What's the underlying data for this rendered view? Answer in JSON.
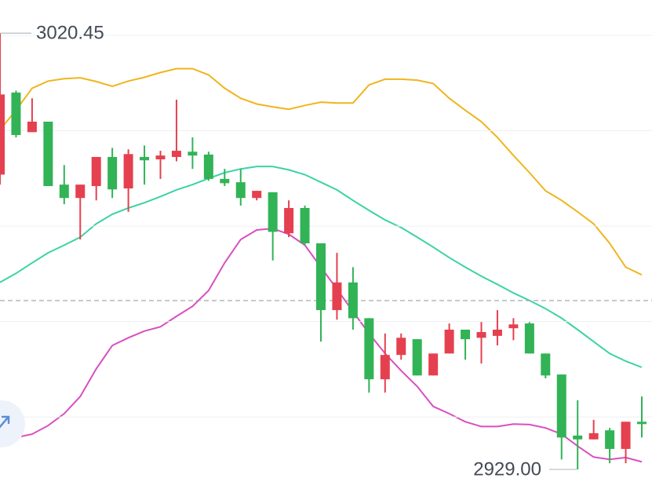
{
  "chart_data": {
    "type": "candlestick",
    "ylim": [
      2924.9,
      3027.4
    ],
    "gridlines": [
      3020,
      3000,
      2980,
      2960,
      2940
    ],
    "price_line": 2964.4,
    "up_color": "#e5404f",
    "down_color": "#31b356",
    "open": [
      2990.8,
      3008.0,
      2999.7,
      3001.9,
      2988.7,
      2985.9,
      2988.4,
      2994.5,
      2987.9,
      2994.5,
      2994.0,
      2994.5,
      2995.6,
      2995.0,
      2989.9,
      2989.2,
      2985.9,
      2987.1,
      2978.5,
      2983.8,
      2976.4,
      2962.4,
      2968.2,
      2960.7,
      2947.9,
      2953.0,
      2956.3,
      2948.7,
      2953.3,
      2958.3,
      2956.6,
      2957.0,
      2958.6,
      2959.6,
      2953.3,
      2948.9,
      2936.1,
      2935.3,
      2937.2,
      2933.3,
      2939.0
    ],
    "high": [
      3020.45,
      3008.4,
      3006.8,
      3001.9,
      2992.8,
      2988.7,
      2994.5,
      2996.4,
      2996.1,
      2996.9,
      2995.8,
      3006.5,
      2998.6,
      2995.6,
      2992.0,
      2992.0,
      2987.4,
      2987.1,
      2985.4,
      2984.3,
      2976.4,
      2974.4,
      2971.4,
      2960.7,
      2957.5,
      2957.5,
      2956.3,
      2953.3,
      2959.6,
      2958.3,
      2959.9,
      2962.4,
      2960.7,
      2959.9,
      2953.3,
      2948.9,
      2943.5,
      2939.4,
      2937.7,
      2939.0,
      2944.3
    ],
    "low": [
      2988.7,
      2998.6,
      2999.7,
      2988.4,
      2984.6,
      2977.2,
      2985.4,
      2985.9,
      2983.0,
      2988.7,
      2989.9,
      2993.6,
      2992.0,
      2989.5,
      2988.4,
      2984.3,
      2985.4,
      2972.8,
      2977.7,
      2976.0,
      2955.8,
      2960.4,
      2958.3,
      2945.1,
      2945.1,
      2952.0,
      2948.7,
      2948.7,
      2953.3,
      2952.0,
      2951.2,
      2955.0,
      2956.1,
      2953.3,
      2948.1,
      2931.1,
      2929.0,
      2935.3,
      2930.3,
      2930.3,
      2935.7
    ],
    "close": [
      3007.6,
      2999.1,
      3001.9,
      2988.4,
      2985.9,
      2988.7,
      2994.5,
      2987.7,
      2995.1,
      2993.8,
      2994.8,
      2995.8,
      2994.8,
      2989.9,
      2989.0,
      2985.9,
      2987.4,
      2978.8,
      2983.8,
      2976.4,
      2962.4,
      2968.2,
      2960.7,
      2947.9,
      2953.0,
      2956.6,
      2948.7,
      2953.3,
      2958.3,
      2956.3,
      2957.8,
      2958.3,
      2959.4,
      2953.3,
      2948.7,
      2935.7,
      2935.3,
      2936.6,
      2933.3,
      2939.0,
      2938.5
    ],
    "series": [
      {
        "color": "#f0b51c",
        "values": [
          3000.2,
          3004.3,
          3008.9,
          3010.4,
          3010.9,
          3011.1,
          3010.3,
          3009.3,
          3010.4,
          3011.2,
          3012.2,
          3013.0,
          3013.0,
          3011.7,
          3008.9,
          3006.8,
          3005.6,
          3005.0,
          3004.5,
          3005.3,
          3006.0,
          3005.8,
          3005.8,
          3009.6,
          3010.8,
          3010.8,
          3010.6,
          3009.9,
          3006.8,
          3004.3,
          3001.9,
          2998.6,
          2994.8,
          2991.2,
          2987.4,
          2985.4,
          2983.0,
          2980.5,
          2976.4,
          2971.4,
          2969.8
        ]
      },
      {
        "color": "#3bd3a6",
        "values": [
          2968.2,
          2970.1,
          2972.3,
          2974.4,
          2976.0,
          2977.7,
          2980.5,
          2982.5,
          2983.8,
          2984.9,
          2986.2,
          2987.6,
          2988.7,
          2990.0,
          2991.2,
          2992.0,
          2992.5,
          2992.5,
          2991.8,
          2990.8,
          2989.2,
          2987.6,
          2985.4,
          2983.3,
          2981.3,
          2979.7,
          2977.7,
          2975.6,
          2973.4,
          2971.4,
          2969.5,
          2967.8,
          2966.0,
          2964.4,
          2962.7,
          2960.7,
          2958.3,
          2955.8,
          2953.3,
          2951.7,
          2950.4
        ]
      },
      {
        "color": "#d84fbf",
        "values": [
          2936.6,
          2935.7,
          2936.4,
          2938.2,
          2940.7,
          2944.3,
          2950.1,
          2955.0,
          2956.6,
          2958.0,
          2958.9,
          2961.1,
          2963.2,
          2966.5,
          2972.3,
          2977.2,
          2979.2,
          2979.5,
          2978.3,
          2976.0,
          2971.4,
          2966.8,
          2962.1,
          2957.5,
          2953.3,
          2949.7,
          2946.4,
          2942.2,
          2940.7,
          2939.0,
          2938.0,
          2938.0,
          2938.5,
          2938.4,
          2937.7,
          2936.4,
          2933.9,
          2931.6,
          2931.1,
          2931.5,
          2930.6
        ]
      }
    ],
    "annotations": [
      {
        "value": 3020.45,
        "label": "3020.45"
      },
      {
        "value": 2929,
        "label": "2929.00"
      }
    ]
  }
}
